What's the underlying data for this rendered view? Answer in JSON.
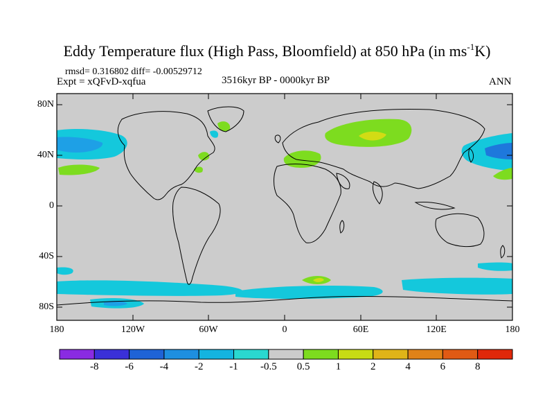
{
  "header": {
    "title_main": "Eddy Temperature flux (High Pass, Bloomfield) at 850 hPa (in ms",
    "title_sup": "-1",
    "title_end": "K)",
    "stats": "rmsd= 0.316802  diff= -0.00529712",
    "expt": "Expt = xQFvD-xqfua",
    "period": "3516kyr BP - 0000kyr BP",
    "season": "ANN"
  },
  "axes": {
    "lat_labels": [
      "80N",
      "40N",
      "0",
      "40S",
      "80S"
    ],
    "lon_labels": [
      "180",
      "120W",
      "60W",
      "0",
      "60E",
      "120E",
      "180"
    ]
  },
  "colorbar": {
    "labels": [
      "-8",
      "-6",
      "-4",
      "-2",
      "-1",
      "-0.5",
      "0.5",
      "1",
      "2",
      "4",
      "6",
      "8"
    ],
    "colors": [
      "#8a2be2",
      "#3a30d8",
      "#1f63d6",
      "#1e8fe0",
      "#14b4e0",
      "#2ad8d0",
      "#cccccc",
      "#7ddc1f",
      "#c8dc14",
      "#e0b418",
      "#e08218",
      "#e05a14",
      "#e0280a"
    ]
  },
  "map_colors": {
    "background": "#cccccc",
    "land_outline": "#000000",
    "anomaly_light_blue": "#14c8dc",
    "anomaly_medium_blue": "#1ea0e6",
    "anomaly_deep_blue": "#1e78dc",
    "anomaly_green": "#7ddc1f",
    "anomaly_yellow": "#d2dc14"
  }
}
